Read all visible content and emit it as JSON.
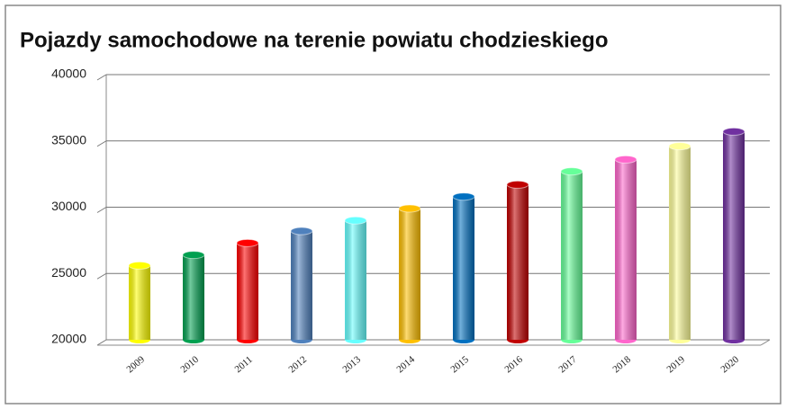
{
  "chart_data": {
    "type": "bar",
    "title": "Pojazdy samochodowe na terenie powiatu chodzieskiego",
    "categories": [
      "2009",
      "2010",
      "2011",
      "2012",
      "2013",
      "2014",
      "2015",
      "2016",
      "2017",
      "2018",
      "2019",
      "2020"
    ],
    "values": [
      25600,
      26400,
      27300,
      28200,
      29000,
      29900,
      30800,
      31700,
      32700,
      33600,
      34600,
      35700
    ],
    "colors": [
      "#ffff00",
      "#00a050",
      "#ff0000",
      "#4f81bd",
      "#66ffff",
      "#ffc000",
      "#0070c0",
      "#c00000",
      "#66ff99",
      "#ff66cc",
      "#ffff99",
      "#7030a0"
    ],
    "ylim": [
      20000,
      40000
    ],
    "yticks": [
      20000,
      25000,
      30000,
      35000,
      40000
    ],
    "grid": true
  }
}
